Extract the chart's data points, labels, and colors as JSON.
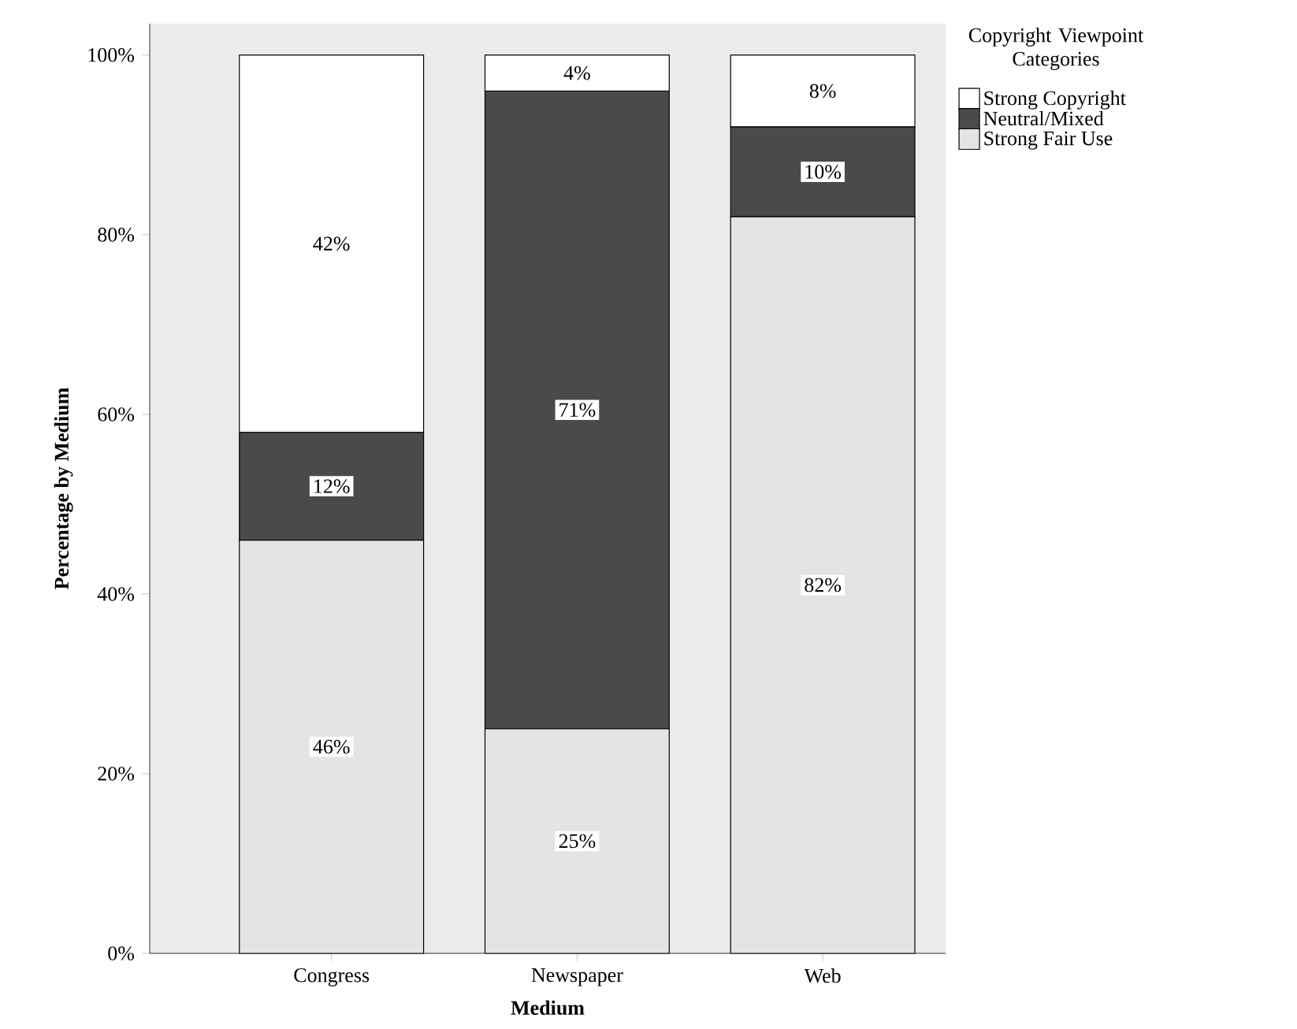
{
  "chart_data": {
    "type": "bar",
    "stacked": true,
    "xlabel": "Medium",
    "ylabel": "Percentage by Medium",
    "legend_title": "Copyright Viewpoint Categories",
    "legend": "top right",
    "categories": [
      "Congress",
      "Newspaper",
      "Web"
    ],
    "series": [
      {
        "name": "Strong Fair Use",
        "color": "#e4e4e4",
        "values": [
          46,
          25,
          82
        ],
        "value_labels": [
          "46%",
          "25%",
          "82%"
        ]
      },
      {
        "name": "Neutral/Mixed",
        "color": "#4a4a4a",
        "values": [
          12,
          71,
          10
        ],
        "value_labels": [
          "12%",
          "71%",
          "10%"
        ]
      },
      {
        "name": "Strong Copyright",
        "color": "#ffffff",
        "values": [
          42,
          4,
          8
        ],
        "value_labels": [
          "42%",
          "4%",
          "8%"
        ]
      }
    ],
    "ylim": [
      0,
      103.5
    ],
    "yticks": [
      {
        "value": 0,
        "label": "0%"
      },
      {
        "value": 20,
        "label": "20%"
      },
      {
        "value": 40,
        "label": "40%"
      },
      {
        "value": 60,
        "label": "60%"
      },
      {
        "value": 80,
        "label": "80%"
      },
      {
        "value": 100,
        "label": "100%"
      }
    ]
  }
}
